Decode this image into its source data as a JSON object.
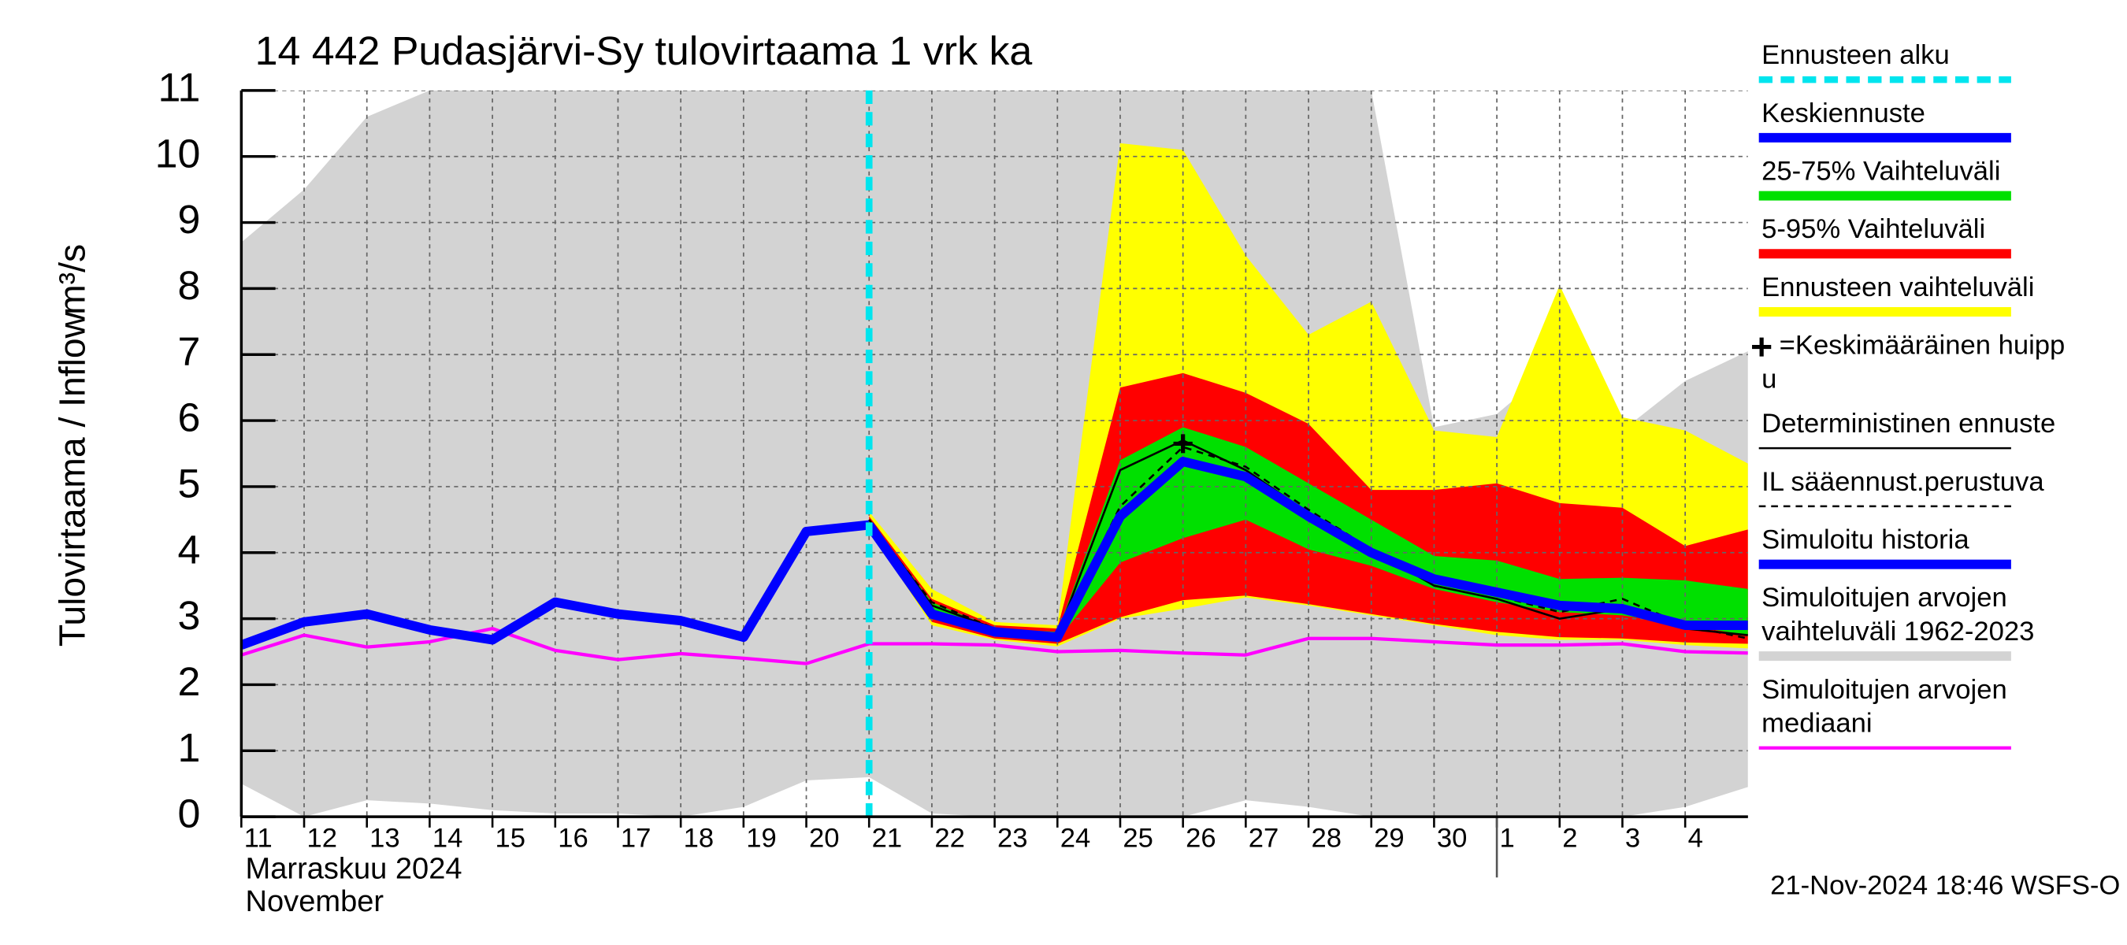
{
  "chart_data": {
    "type": "line",
    "title": "14 442 Pudasjärvi-Sy tulovirtaama 1 vrk ka",
    "y_label": "Tulovirtaama / Inflow",
    "y_unit": "m³/s",
    "x_label": [
      "Marraskuu 2024",
      "November"
    ],
    "footer": "21-Nov-2024 18:46 WSFS-O",
    "grid": true,
    "x": [
      0,
      1,
      2,
      3,
      4,
      5,
      6,
      7,
      8,
      9,
      10,
      11,
      12,
      13,
      14,
      15,
      16,
      17,
      18,
      19,
      20,
      21,
      22,
      23,
      24
    ],
    "xlim": [
      0,
      24
    ],
    "xticks": [
      {
        "value": 0,
        "label": "11"
      },
      {
        "value": 1,
        "label": "12"
      },
      {
        "value": 2,
        "label": "13"
      },
      {
        "value": 3,
        "label": "14"
      },
      {
        "value": 4,
        "label": "15"
      },
      {
        "value": 5,
        "label": "16"
      },
      {
        "value": 6,
        "label": "17"
      },
      {
        "value": 7,
        "label": "18"
      },
      {
        "value": 8,
        "label": "19"
      },
      {
        "value": 9,
        "label": "20"
      },
      {
        "value": 10,
        "label": "21"
      },
      {
        "value": 11,
        "label": "22"
      },
      {
        "value": 12,
        "label": "23"
      },
      {
        "value": 13,
        "label": "24"
      },
      {
        "value": 14,
        "label": "25"
      },
      {
        "value": 15,
        "label": "26"
      },
      {
        "value": 16,
        "label": "27"
      },
      {
        "value": 17,
        "label": "28"
      },
      {
        "value": 18,
        "label": "29"
      },
      {
        "value": 19,
        "label": "30"
      },
      {
        "value": 20,
        "label": "1"
      },
      {
        "value": 21,
        "label": "2"
      },
      {
        "value": 22,
        "label": "3"
      },
      {
        "value": 23,
        "label": "4"
      }
    ],
    "month_break": 20,
    "ylim": [
      0,
      11
    ],
    "yticks": [
      0,
      1,
      2,
      3,
      4,
      5,
      6,
      7,
      8,
      9,
      10,
      11
    ],
    "series": [
      {
        "name": [
          "Ennusteen alku"
        ],
        "kind": "vline",
        "color": "#00e5ee",
        "x": 10
      },
      {
        "name": [
          "Keskiennuste"
        ],
        "kind": "line",
        "style": "thick",
        "color": "#0000ff",
        "values": [
          null,
          null,
          null,
          null,
          null,
          null,
          null,
          null,
          null,
          null,
          4.42,
          3.07,
          2.8,
          2.72,
          4.55,
          5.38,
          5.15,
          4.55,
          4.0,
          3.6,
          3.4,
          3.2,
          3.15,
          2.9,
          2.9
        ]
      },
      {
        "name": [
          "25-75% Vaihteluväli"
        ],
        "kind": "band",
        "color": "#00e000",
        "upper": [
          null,
          null,
          null,
          null,
          null,
          null,
          null,
          null,
          null,
          null,
          4.5,
          3.25,
          2.85,
          2.8,
          5.4,
          5.9,
          5.6,
          5.05,
          4.5,
          3.95,
          3.88,
          3.6,
          3.62,
          3.58,
          3.45
        ],
        "lower": [
          null,
          null,
          null,
          null,
          null,
          null,
          null,
          null,
          null,
          null,
          4.4,
          3.05,
          2.75,
          2.68,
          3.85,
          4.22,
          4.5,
          4.05,
          3.8,
          3.45,
          3.25,
          3.1,
          3.05,
          2.9,
          2.75
        ]
      },
      {
        "name": [
          "5-95% Vaihteluväli"
        ],
        "kind": "band",
        "color": "#ff0000",
        "upper": [
          null,
          null,
          null,
          null,
          null,
          null,
          null,
          null,
          null,
          null,
          4.55,
          3.3,
          2.9,
          2.85,
          6.5,
          6.72,
          6.42,
          5.95,
          4.95,
          4.95,
          5.05,
          4.75,
          4.68,
          4.1,
          4.35
        ],
        "lower": [
          null,
          null,
          null,
          null,
          null,
          null,
          null,
          null,
          null,
          null,
          4.38,
          2.95,
          2.7,
          2.62,
          3.02,
          3.28,
          3.35,
          3.22,
          3.07,
          2.92,
          2.8,
          2.72,
          2.7,
          2.64,
          2.62
        ]
      },
      {
        "name": [
          "Ennusteen vaihteluväli"
        ],
        "kind": "band",
        "color": "#ffff00",
        "upper": [
          null,
          null,
          null,
          null,
          null,
          null,
          null,
          null,
          null,
          null,
          4.62,
          3.45,
          2.95,
          2.9,
          10.2,
          10.1,
          8.5,
          7.3,
          7.8,
          5.85,
          5.75,
          8.05,
          6.05,
          5.85,
          5.35
        ],
        "lower": [
          null,
          null,
          null,
          null,
          null,
          null,
          null,
          null,
          null,
          null,
          4.35,
          2.9,
          2.68,
          2.58,
          3.0,
          3.15,
          3.32,
          3.2,
          3.05,
          2.9,
          2.75,
          2.68,
          2.68,
          2.6,
          2.55
        ]
      },
      {
        "name": [
          "=Keskimääräinen huipp",
          "u"
        ],
        "kind": "marker",
        "color": "#000000",
        "x": 15,
        "y": 5.65
      },
      {
        "name": [
          "Deterministinen ennuste"
        ],
        "kind": "line",
        "style": "thin",
        "color": "#000000",
        "values": [
          null,
          null,
          null,
          null,
          null,
          null,
          null,
          null,
          null,
          null,
          4.5,
          3.2,
          2.85,
          2.75,
          5.25,
          5.7,
          5.25,
          4.6,
          4.05,
          3.5,
          3.3,
          3.0,
          3.15,
          2.85,
          2.75
        ]
      },
      {
        "name": [
          "IL sääennust.perustuva"
        ],
        "kind": "line",
        "style": "dashed",
        "color": "#000000",
        "values": [
          null,
          null,
          null,
          null,
          null,
          null,
          null,
          null,
          null,
          null,
          4.45,
          3.25,
          2.85,
          2.75,
          4.7,
          5.6,
          5.3,
          4.65,
          4.05,
          3.55,
          3.35,
          3.1,
          3.3,
          2.9,
          2.7
        ]
      },
      {
        "name": [
          "Simuloitu historia"
        ],
        "kind": "line",
        "style": "thick",
        "color": "#0000ff",
        "values": [
          2.6,
          2.95,
          3.07,
          2.83,
          2.68,
          3.25,
          3.07,
          2.97,
          2.72,
          4.32,
          4.42,
          null,
          null,
          null,
          null,
          null,
          null,
          null,
          null,
          null,
          null,
          null,
          null,
          null,
          null
        ]
      },
      {
        "name": [
          "Simuloitujen arvojen",
          "vaihteluväli 1962-2023"
        ],
        "kind": "band",
        "color": "#d3d3d3",
        "upper": [
          8.7,
          9.5,
          10.6,
          11,
          11,
          11,
          11,
          11,
          11,
          11,
          11,
          11,
          11,
          11,
          11,
          11,
          11,
          11,
          11,
          5.9,
          6.1,
          6.9,
          5.85,
          6.6,
          7.05
        ],
        "lower": [
          0.5,
          0.0,
          0.25,
          0.2,
          0.1,
          0.05,
          0.05,
          0.0,
          0.15,
          0.55,
          0.6,
          0.05,
          0,
          0,
          0,
          0,
          0.25,
          0.15,
          0,
          0,
          0,
          0,
          0,
          0.15,
          0.45
        ]
      },
      {
        "name": [
          "Simuloitujen arvojen",
          "mediaani"
        ],
        "kind": "line",
        "style": "medium",
        "color": "#ff00ff",
        "values": [
          2.45,
          2.75,
          2.57,
          2.65,
          2.85,
          2.52,
          2.38,
          2.47,
          2.4,
          2.32,
          2.62,
          2.62,
          2.6,
          2.5,
          2.52,
          2.48,
          2.45,
          2.7,
          2.7,
          2.65,
          2.6,
          2.6,
          2.62,
          2.5,
          2.48
        ]
      }
    ]
  }
}
